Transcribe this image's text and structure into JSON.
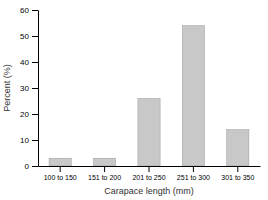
{
  "chart_data": {
    "type": "bar",
    "categories": [
      "100 to 150",
      "151 to 200",
      "201 to 250",
      "251 to 300",
      "301 to 350"
    ],
    "values": [
      3,
      3,
      26,
      54,
      14
    ],
    "color": "#c8c8c8",
    "xlabel": "Carapace length (mm)",
    "ylabel": "Percent (%)",
    "ylim": [
      0,
      60
    ],
    "yticks": [
      0,
      10,
      20,
      30,
      40,
      50,
      60
    ],
    "grid": false
  }
}
